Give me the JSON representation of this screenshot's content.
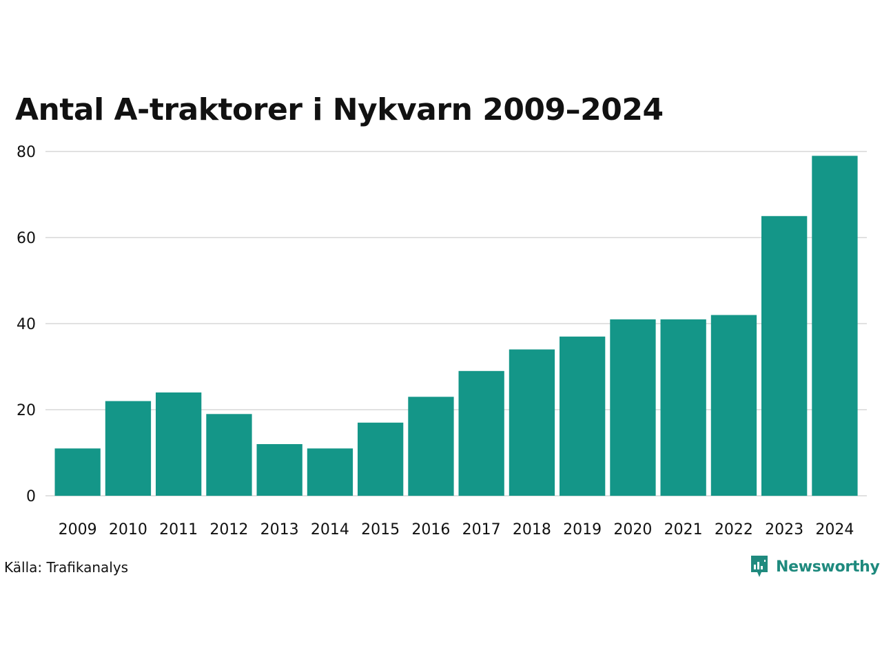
{
  "brand": {
    "name": "Newsworthy",
    "color": "#1f8a7e"
  },
  "source": "Källa: Trafikanalys",
  "chart_data": {
    "type": "bar",
    "title": "Antal A-traktorer i Nykvarn 2009–2024",
    "xlabel": "",
    "ylabel": "",
    "categories": [
      "2009",
      "2010",
      "2011",
      "2012",
      "2013",
      "2014",
      "2015",
      "2016",
      "2017",
      "2018",
      "2019",
      "2020",
      "2021",
      "2022",
      "2023",
      "2024"
    ],
    "values": [
      11,
      22,
      24,
      19,
      12,
      11,
      17,
      23,
      29,
      34,
      37,
      41,
      41,
      42,
      65,
      79
    ],
    "ylim": [
      0,
      80
    ],
    "yticks": [
      0,
      20,
      40,
      60,
      80
    ],
    "grid": true,
    "bar_color": "#149688"
  }
}
